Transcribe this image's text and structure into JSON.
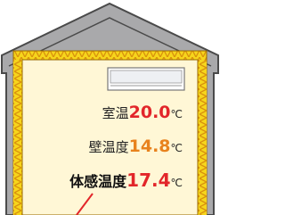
{
  "labels": [
    {
      "name": "室温",
      "value": "20.0",
      "unit": "℃"
    },
    {
      "name": "壁温度",
      "value": "14.8",
      "unit": "℃"
    },
    {
      "name": "体感温度",
      "value": "17.4",
      "unit": "℃"
    }
  ]
}
